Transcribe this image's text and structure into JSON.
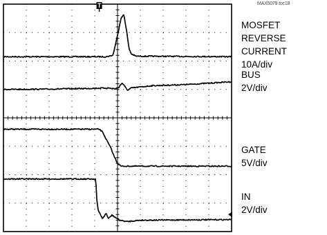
{
  "figure_tag": "MAX5079 toc18",
  "trigger_marker": "T",
  "chart_data": {
    "type": "line",
    "title": "",
    "grid": true,
    "x_divisions": 10,
    "y_divisions": 8,
    "channels": [
      {
        "name": "MOSFET REVERSE CURRENT",
        "scale": "10A/div",
        "baseline_div": 6.15,
        "points": [
          [
            0.0,
            0.0
          ],
          [
            4.5,
            0.0
          ],
          [
            4.8,
            0.05
          ],
          [
            5.0,
            0.75
          ],
          [
            5.15,
            1.35
          ],
          [
            5.28,
            1.48
          ],
          [
            5.4,
            0.9
          ],
          [
            5.5,
            0.3
          ],
          [
            5.6,
            0.1
          ],
          [
            5.8,
            0.02
          ],
          [
            10.0,
            0.0
          ]
        ]
      },
      {
        "name": "BUS",
        "scale": "2V/div",
        "baseline_div": 5.05,
        "points": [
          [
            0.0,
            -0.05
          ],
          [
            2.0,
            -0.04
          ],
          [
            4.6,
            0.0
          ],
          [
            4.9,
            -0.03
          ],
          [
            5.05,
            0.02
          ],
          [
            5.2,
            0.18
          ],
          [
            5.32,
            0.05
          ],
          [
            5.45,
            -0.08
          ],
          [
            5.6,
            0.0
          ],
          [
            6.5,
            0.08
          ],
          [
            8.0,
            0.12
          ],
          [
            10.0,
            0.22
          ]
        ]
      },
      {
        "name": "GATE",
        "scale": "5V/div",
        "baseline_div": 2.3,
        "points": [
          [
            0.0,
            1.3
          ],
          [
            4.2,
            1.3
          ],
          [
            4.35,
            1.2
          ],
          [
            4.5,
            0.95
          ],
          [
            4.7,
            0.65
          ],
          [
            4.85,
            0.35
          ],
          [
            5.0,
            0.1
          ],
          [
            5.15,
            0.0
          ],
          [
            10.0,
            0.0
          ]
        ]
      },
      {
        "name": "IN",
        "scale": "2V/div",
        "baseline_div": 0.4,
        "points": [
          [
            0.0,
            1.45
          ],
          [
            4.05,
            1.45
          ],
          [
            4.08,
            0.8
          ],
          [
            4.15,
            0.35
          ],
          [
            4.25,
            0.2
          ],
          [
            4.35,
            0.05
          ],
          [
            4.5,
            0.25
          ],
          [
            4.6,
            0.05
          ],
          [
            4.75,
            0.18
          ],
          [
            4.9,
            0.1
          ],
          [
            5.1,
            0.0
          ],
          [
            5.4,
            -0.05
          ],
          [
            6.0,
            0.0
          ],
          [
            10.0,
            0.02
          ]
        ]
      }
    ]
  },
  "labels": [
    {
      "lines": [
        "MOSFET REVERSE",
        "CURRENT",
        "10A/div"
      ]
    },
    {
      "lines": [
        "BUS",
        "2V/div"
      ]
    },
    {
      "lines": [
        "GATE",
        "5V/div"
      ]
    },
    {
      "lines": [
        "IN",
        "2V/div"
      ]
    }
  ]
}
